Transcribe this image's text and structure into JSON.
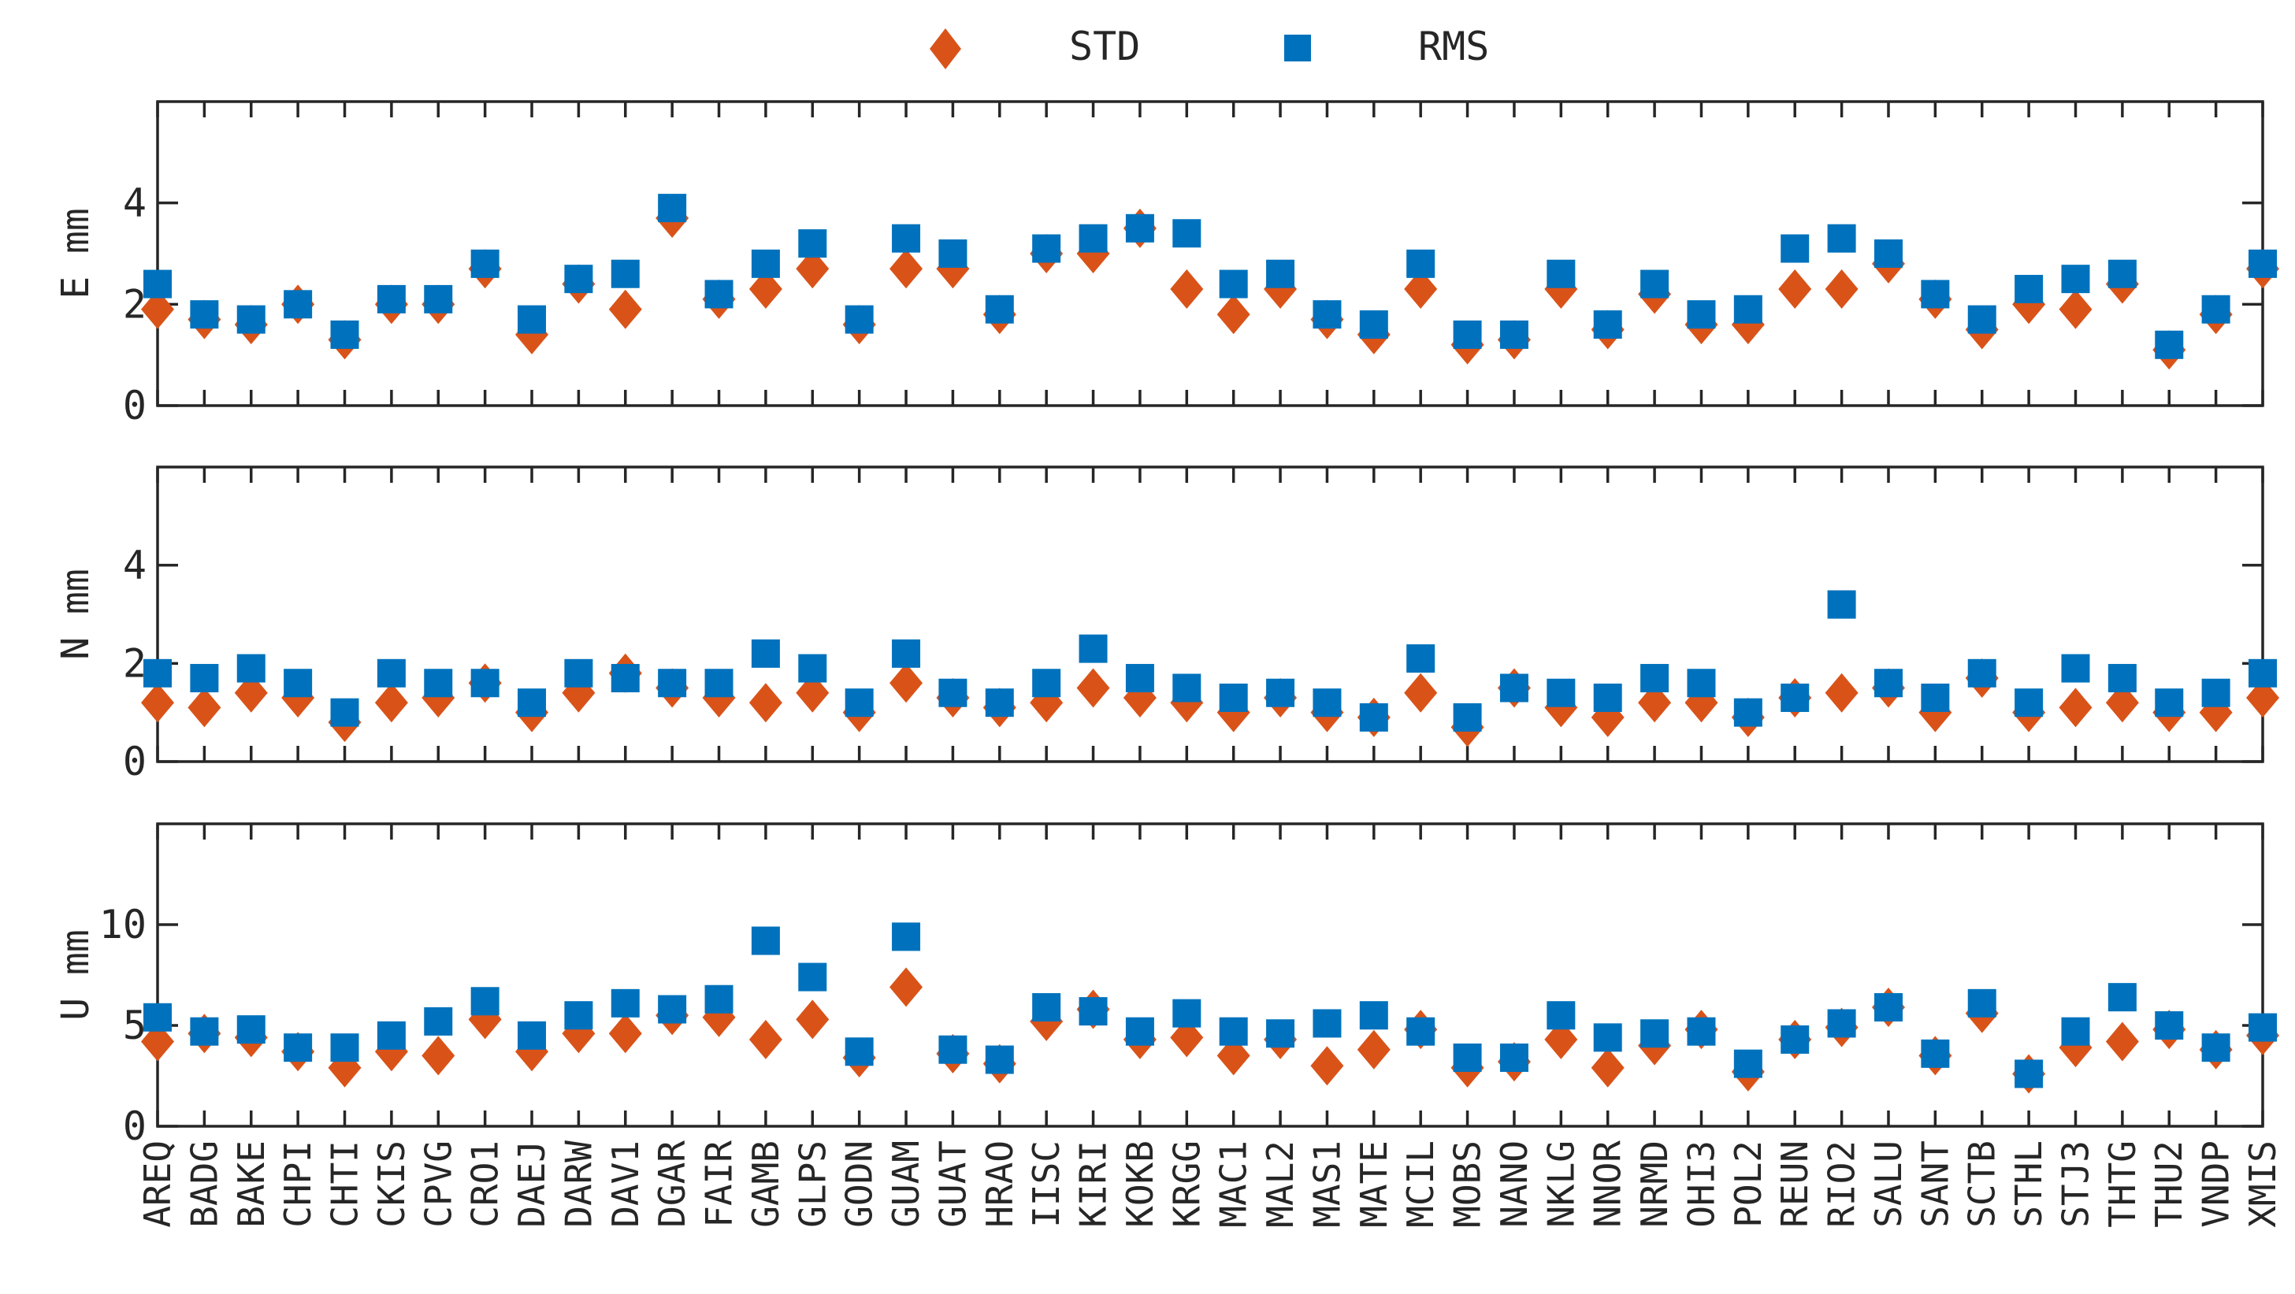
{
  "chart_data": {
    "type": "scatter",
    "legend": {
      "placement": "top-center",
      "entries": [
        {
          "name": "STD",
          "marker": "diamond",
          "color": "#D95319"
        },
        {
          "name": "RMS",
          "marker": "square",
          "color": "#0072BD"
        }
      ]
    },
    "categories": [
      "AREQ",
      "BADG",
      "BAKE",
      "CHPI",
      "CHTI",
      "CKIS",
      "CPVG",
      "CRO1",
      "DAEJ",
      "DARW",
      "DAV1",
      "DGAR",
      "FAIR",
      "GAMB",
      "GLPS",
      "GODN",
      "GUAM",
      "GUAT",
      "HRAO",
      "IISC",
      "KIRI",
      "KOKB",
      "KRGG",
      "MAC1",
      "MAL2",
      "MAS1",
      "MATE",
      "MCIL",
      "MOBS",
      "NANO",
      "NKLG",
      "NNOR",
      "NRMD",
      "OHI3",
      "POL2",
      "REUN",
      "RIO2",
      "SALU",
      "SANT",
      "SCTB",
      "STHL",
      "STJ3",
      "THTG",
      "THU2",
      "VNDP",
      "XMIS"
    ],
    "panels": [
      {
        "ylabel": "E mm",
        "ylim": [
          0,
          6
        ],
        "yticks": [
          0,
          2,
          4
        ],
        "ytick_labels": [
          "0",
          "2",
          "4"
        ],
        "series": [
          {
            "name": "STD",
            "values": [
              1.9,
              1.7,
              1.6,
              2.0,
              1.3,
              2.0,
              2.0,
              2.7,
              1.4,
              2.4,
              1.9,
              3.7,
              2.1,
              2.3,
              2.7,
              1.6,
              2.7,
              2.7,
              1.8,
              3.0,
              3.0,
              3.5,
              2.3,
              1.8,
              2.3,
              1.7,
              1.4,
              2.3,
              1.2,
              1.3,
              2.3,
              1.5,
              2.2,
              1.6,
              1.6,
              2.3,
              2.3,
              2.8,
              2.1,
              1.5,
              2.0,
              1.9,
              2.4,
              1.1,
              1.8,
              2.7
            ]
          },
          {
            "name": "RMS",
            "values": [
              2.4,
              1.8,
              1.7,
              2.0,
              1.4,
              2.1,
              2.1,
              2.8,
              1.7,
              2.5,
              2.6,
              3.9,
              2.2,
              2.8,
              3.2,
              1.7,
              3.3,
              3.0,
              1.9,
              3.1,
              3.3,
              3.5,
              3.4,
              2.4,
              2.6,
              1.8,
              1.6,
              2.8,
              1.4,
              1.4,
              2.6,
              1.6,
              2.4,
              1.8,
              1.9,
              3.1,
              3.3,
              3.0,
              2.2,
              1.7,
              2.3,
              2.5,
              2.6,
              1.2,
              1.9,
              2.8
            ]
          }
        ]
      },
      {
        "ylabel": "N mm",
        "ylim": [
          0,
          6
        ],
        "yticks": [
          0,
          2,
          4
        ],
        "ytick_labels": [
          "0",
          "2",
          "4"
        ],
        "series": [
          {
            "name": "STD",
            "values": [
              1.2,
              1.1,
              1.4,
              1.3,
              0.8,
              1.2,
              1.3,
              1.6,
              1.0,
              1.4,
              1.8,
              1.5,
              1.3,
              1.2,
              1.4,
              1.0,
              1.6,
              1.3,
              1.1,
              1.2,
              1.5,
              1.3,
              1.2,
              1.0,
              1.3,
              1.0,
              0.9,
              1.4,
              0.7,
              1.5,
              1.1,
              0.9,
              1.2,
              1.2,
              0.9,
              1.3,
              1.4,
              1.5,
              1.0,
              1.7,
              1.0,
              1.1,
              1.2,
              1.0,
              1.0,
              1.3
            ]
          },
          {
            "name": "RMS",
            "values": [
              1.8,
              1.7,
              1.9,
              1.6,
              1.0,
              1.8,
              1.6,
              1.6,
              1.2,
              1.8,
              1.7,
              1.6,
              1.6,
              2.2,
              1.9,
              1.2,
              2.2,
              1.4,
              1.2,
              1.6,
              2.3,
              1.7,
              1.5,
              1.3,
              1.4,
              1.2,
              0.9,
              2.1,
              0.9,
              1.5,
              1.4,
              1.3,
              1.7,
              1.6,
              1.0,
              1.3,
              3.2,
              1.6,
              1.3,
              1.8,
              1.2,
              1.9,
              1.7,
              1.2,
              1.4,
              1.8
            ]
          }
        ]
      },
      {
        "ylabel": "U mm",
        "ylim": [
          0,
          15
        ],
        "yticks": [
          0,
          5,
          10
        ],
        "ytick_labels": [
          "0",
          "5",
          "10"
        ],
        "series": [
          {
            "name": "STD",
            "values": [
              4.2,
              4.6,
              4.4,
              3.7,
              2.9,
              3.7,
              3.5,
              5.3,
              3.7,
              4.6,
              4.6,
              5.5,
              5.4,
              4.3,
              5.3,
              3.4,
              6.9,
              3.6,
              3.1,
              5.2,
              5.8,
              4.3,
              4.4,
              3.5,
              4.3,
              3.0,
              3.8,
              4.8,
              2.9,
              3.2,
              4.3,
              2.9,
              4.0,
              4.8,
              2.7,
              4.3,
              4.9,
              5.9,
              3.5,
              5.6,
              2.6,
              3.9,
              4.2,
              4.8,
              3.8,
              4.5
            ]
          },
          {
            "name": "RMS",
            "values": [
              5.4,
              4.7,
              4.8,
              3.9,
              3.9,
              4.5,
              5.2,
              6.2,
              4.5,
              5.5,
              6.1,
              5.8,
              6.3,
              9.2,
              7.4,
              3.7,
              9.4,
              3.8,
              3.3,
              5.9,
              5.7,
              4.7,
              5.6,
              4.7,
              4.6,
              5.1,
              5.5,
              4.7,
              3.4,
              3.4,
              5.5,
              4.4,
              4.6,
              4.7,
              3.1,
              4.3,
              5.1,
              5.9,
              3.6,
              6.1,
              2.6,
              4.7,
              6.4,
              5.0,
              3.9,
              4.9
            ]
          }
        ]
      }
    ]
  }
}
